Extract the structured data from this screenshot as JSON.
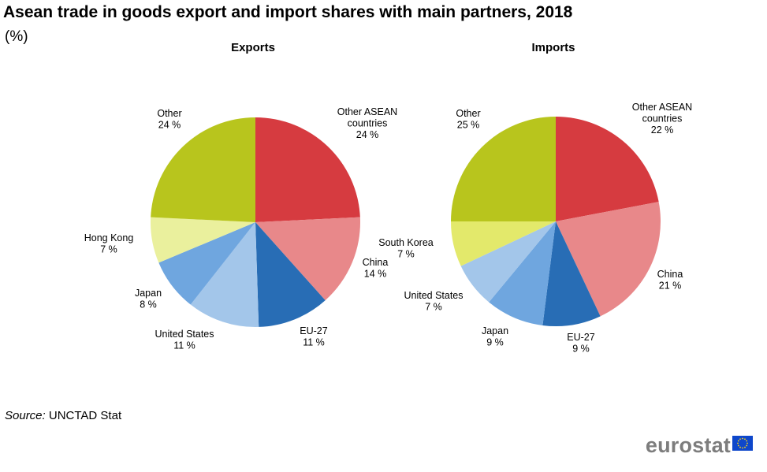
{
  "title": "Asean trade in goods export and import shares with main partners, 2018",
  "unit": "(%)",
  "source_label": "Source:",
  "source_text": "UNCTAD Stat",
  "brand": "eurostat",
  "colors": {
    "Other ASEAN countries": "#d63b40",
    "China": "#e8888a",
    "EU-27": "#286db5",
    "United States": "#a3c6ea",
    "Japan": "#6fa6df",
    "Hong Kong": "#eaf09d",
    "South Korea": "#e3e96b",
    "Other": "#b8c51d",
    "flag": "#0e47cb",
    "stars": "#ffd617"
  },
  "chart_data": [
    {
      "type": "pie",
      "title": "Exports",
      "slices": [
        {
          "name": "Other ASEAN countries",
          "label_lines": [
            "Other ASEAN",
            "countries"
          ],
          "label_value": "24 %",
          "value": 24
        },
        {
          "name": "China",
          "label_lines": [
            "China"
          ],
          "label_value": "14 %",
          "value": 14
        },
        {
          "name": "EU-27",
          "label_lines": [
            "EU-27"
          ],
          "label_value": "11 %",
          "value": 11
        },
        {
          "name": "United States",
          "label_lines": [
            "United States"
          ],
          "label_value": "11 %",
          "value": 11
        },
        {
          "name": "Japan",
          "label_lines": [
            "Japan"
          ],
          "label_value": "8 %",
          "value": 8
        },
        {
          "name": "Hong Kong",
          "label_lines": [
            "Hong Kong"
          ],
          "label_value": "7 %",
          "value": 7
        },
        {
          "name": "Other",
          "label_lines": [
            "Other"
          ],
          "label_value": "24 %",
          "value": 24
        }
      ]
    },
    {
      "type": "pie",
      "title": "Imports",
      "slices": [
        {
          "name": "Other ASEAN countries",
          "label_lines": [
            "Other ASEAN",
            "countries"
          ],
          "label_value": "22 %",
          "value": 22
        },
        {
          "name": "China",
          "label_lines": [
            "China"
          ],
          "label_value": "21 %",
          "value": 21
        },
        {
          "name": "EU-27",
          "label_lines": [
            "EU-27"
          ],
          "label_value": "9 %",
          "value": 9
        },
        {
          "name": "Japan",
          "label_lines": [
            "Japan"
          ],
          "label_value": "9 %",
          "value": 9
        },
        {
          "name": "United States",
          "label_lines": [
            "United States"
          ],
          "label_value": "7 %",
          "value": 7
        },
        {
          "name": "South Korea",
          "label_lines": [
            "South Korea"
          ],
          "label_value": "7 %",
          "value": 7
        },
        {
          "name": "Other",
          "label_lines": [
            "Other"
          ],
          "label_value": "25 %",
          "value": 25
        }
      ]
    }
  ]
}
